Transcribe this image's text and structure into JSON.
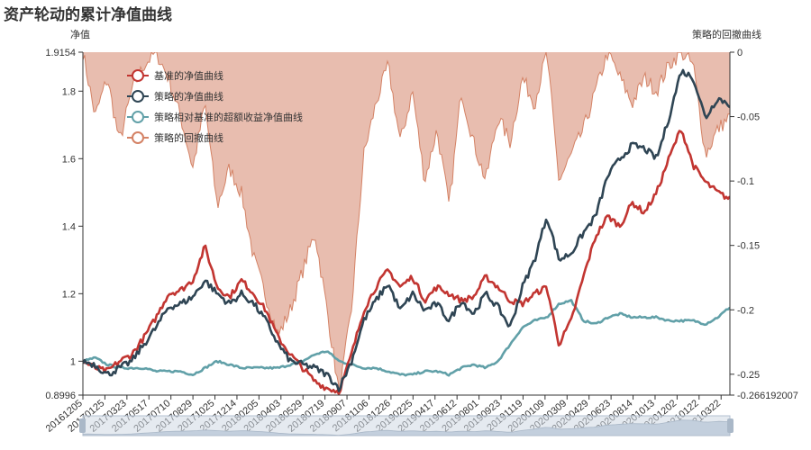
{
  "page_title": "资产轮动的累计净值曲线",
  "colors": {
    "benchmark": "#c23531",
    "strategy": "#2f4554",
    "excess": "#61a0a8",
    "drawdown_line": "#d48265",
    "drawdown_fill": "#e6b6a6",
    "slider_fill": "#cfd8e3",
    "slider_border": "#b3c0d1"
  },
  "chart_data": {
    "type": "line",
    "title": "资产轮动的累计净值曲线",
    "left_axis": {
      "name": "净值",
      "min": 0.8996,
      "max": 1.9154,
      "tick_labels": [
        "0.8996",
        "1",
        "1.2",
        "1.4",
        "1.6",
        "1.8",
        "1.9154"
      ],
      "tick_values": [
        0.8996,
        1.0,
        1.2,
        1.4,
        1.6,
        1.8,
        1.9154
      ]
    },
    "right_axis": {
      "name": "策略的回撤曲线",
      "min": -0.266192007,
      "max": 0,
      "tick_labels": [
        "0",
        "-0.05",
        "-0.1",
        "-0.15",
        "-0.2",
        "-0.25",
        "-0.266192007"
      ],
      "tick_values": [
        0,
        -0.05,
        -0.1,
        -0.15,
        -0.2,
        -0.25,
        -0.266192007
      ]
    },
    "x_tick_labels": [
      "20161205",
      "20170125",
      "20170323",
      "20170517",
      "20170710",
      "20170829",
      "20171025",
      "20171214",
      "20180205",
      "20180403",
      "20180529",
      "20180719",
      "20180907",
      "20181106",
      "20181226",
      "20190225",
      "20190417",
      "20190612",
      "20190801",
      "20190923",
      "20191119",
      "20200109",
      "20200309",
      "20200429",
      "20200623",
      "20200814",
      "20201013",
      "20201202",
      "20210122",
      "20210322"
    ],
    "legend": [
      "基准的净值曲线",
      "策略的净值曲线",
      "策略相对基准的超额收益净值曲线",
      "策略的回撤曲线"
    ],
    "series": [
      {
        "name": "基准的净值曲线",
        "axis": "left",
        "values": [
          1.0,
          0.98,
          0.97,
          1.0,
          1.02,
          1.07,
          1.13,
          1.2,
          1.21,
          1.24,
          1.34,
          1.22,
          1.19,
          1.24,
          1.2,
          1.15,
          1.07,
          1.02,
          0.98,
          0.94,
          0.92,
          0.91,
          1.02,
          1.15,
          1.22,
          1.27,
          1.22,
          1.25,
          1.18,
          1.22,
          1.2,
          1.18,
          1.19,
          1.25,
          1.22,
          1.18,
          1.17,
          1.2,
          1.22,
          1.05,
          1.12,
          1.25,
          1.37,
          1.43,
          1.4,
          1.47,
          1.44,
          1.5,
          1.6,
          1.69,
          1.58,
          1.53,
          1.5,
          1.48
        ]
      },
      {
        "name": "策略的净值曲线",
        "axis": "left",
        "values": [
          1.0,
          0.99,
          0.96,
          0.98,
          1.0,
          1.05,
          1.1,
          1.16,
          1.17,
          1.19,
          1.24,
          1.2,
          1.17,
          1.2,
          1.17,
          1.12,
          1.05,
          1.0,
          0.99,
          0.98,
          0.96,
          0.92,
          1.0,
          1.12,
          1.18,
          1.23,
          1.15,
          1.2,
          1.15,
          1.17,
          1.12,
          1.18,
          1.14,
          1.2,
          1.16,
          1.1,
          1.22,
          1.3,
          1.43,
          1.3,
          1.32,
          1.38,
          1.43,
          1.55,
          1.6,
          1.64,
          1.63,
          1.6,
          1.72,
          1.86,
          1.84,
          1.72,
          1.78,
          1.76
        ]
      },
      {
        "name": "策略相对基准的超额收益净值曲线",
        "axis": "left",
        "values": [
          1.0,
          1.01,
          0.99,
          0.98,
          0.98,
          0.98,
          0.97,
          0.97,
          0.97,
          0.96,
          0.98,
          1.0,
          0.99,
          0.98,
          0.98,
          0.98,
          0.98,
          0.99,
          1.0,
          1.02,
          1.03,
          1.0,
          0.99,
          0.98,
          0.98,
          0.97,
          0.96,
          0.96,
          0.97,
          0.97,
          0.96,
          0.98,
          0.99,
          0.98,
          1.0,
          1.05,
          1.1,
          1.12,
          1.13,
          1.17,
          1.18,
          1.12,
          1.11,
          1.13,
          1.14,
          1.13,
          1.13,
          1.13,
          1.12,
          1.12,
          1.12,
          1.11,
          1.13,
          1.16
        ]
      },
      {
        "name": "策略的回撤曲线",
        "axis": "right",
        "values": [
          0,
          -0.05,
          -0.02,
          -0.07,
          -0.03,
          -0.01,
          0,
          -0.02,
          -0.05,
          -0.09,
          -0.04,
          -0.12,
          -0.09,
          -0.11,
          -0.16,
          -0.19,
          -0.22,
          -0.2,
          -0.17,
          -0.14,
          -0.2,
          -0.266,
          -0.2,
          -0.08,
          -0.04,
          -0.01,
          -0.07,
          -0.03,
          -0.1,
          -0.06,
          -0.12,
          -0.03,
          -0.07,
          -0.1,
          -0.05,
          -0.07,
          -0.02,
          -0.04,
          0,
          -0.1,
          -0.08,
          -0.06,
          -0.03,
          0,
          -0.02,
          -0.04,
          -0.02,
          -0.03,
          -0.01,
          0,
          -0.01,
          -0.08,
          -0.06,
          -0.05
        ]
      }
    ]
  }
}
